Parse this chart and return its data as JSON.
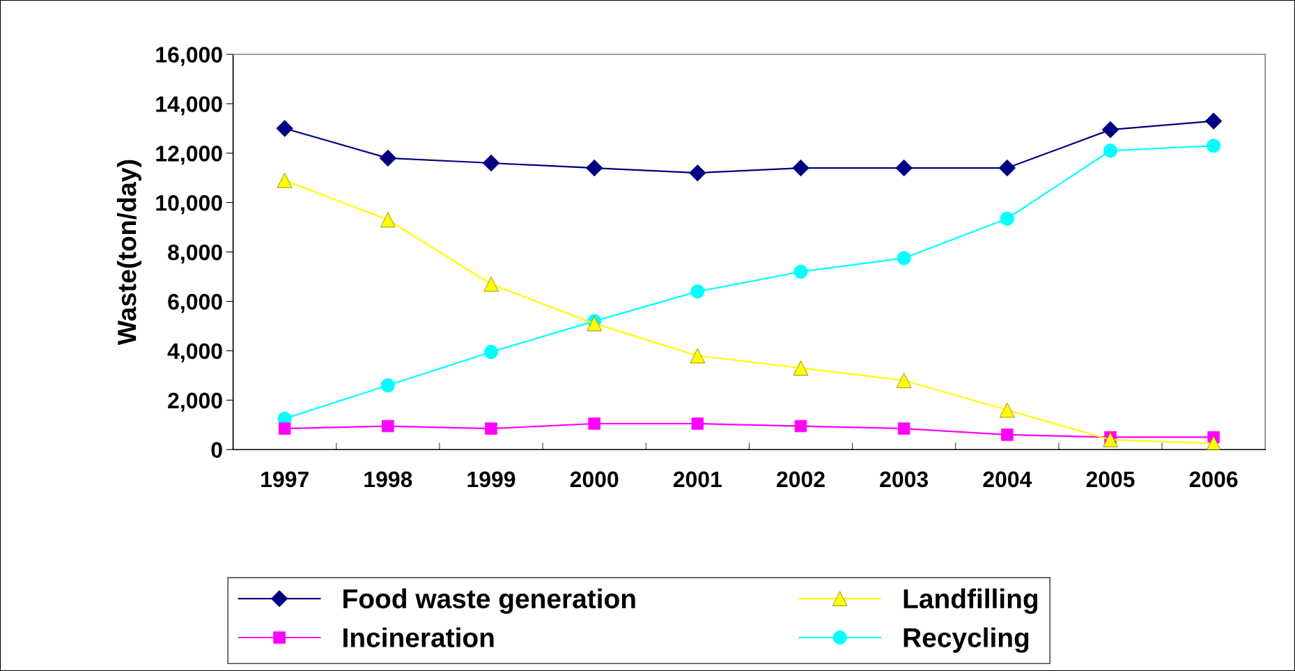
{
  "chart_data": {
    "type": "line",
    "ylabel": "Waste(ton/day)",
    "categories": [
      "1997",
      "1998",
      "1999",
      "2000",
      "2001",
      "2002",
      "2003",
      "2004",
      "2005",
      "2006"
    ],
    "ylim": [
      0,
      16000
    ],
    "yticks": [
      {
        "value": 0,
        "label": "0"
      },
      {
        "value": 2000,
        "label": "2,000"
      },
      {
        "value": 4000,
        "label": "4,000"
      },
      {
        "value": 6000,
        "label": "6,000"
      },
      {
        "value": 8000,
        "label": "8,000"
      },
      {
        "value": 10000,
        "label": "10,000"
      },
      {
        "value": 12000,
        "label": "12,000"
      },
      {
        "value": 14000,
        "label": "14,000"
      },
      {
        "value": 16000,
        "label": "16,000"
      }
    ],
    "grid": false,
    "legend": "bottom",
    "series": [
      {
        "name": "Food waste generation",
        "color": "#000080",
        "marker": "diamond",
        "values": [
          13000,
          11800,
          11600,
          11400,
          11200,
          11400,
          11400,
          11400,
          12950,
          13300
        ]
      },
      {
        "name": "Incineration",
        "color": "#ff00ff",
        "marker": "square",
        "values": [
          850,
          950,
          850,
          1050,
          1050,
          950,
          850,
          600,
          500,
          500
        ]
      },
      {
        "name": "Landfilling",
        "color": "#ffff00",
        "marker": "triangle",
        "values": [
          10900,
          9300,
          6700,
          5100,
          3800,
          3300,
          2800,
          1600,
          400,
          250
        ]
      },
      {
        "name": "Recycling",
        "color": "#00ffff",
        "marker": "circle",
        "values": [
          1250,
          2600,
          3950,
          5200,
          6400,
          7200,
          7750,
          9350,
          12100,
          12300
        ]
      }
    ]
  }
}
